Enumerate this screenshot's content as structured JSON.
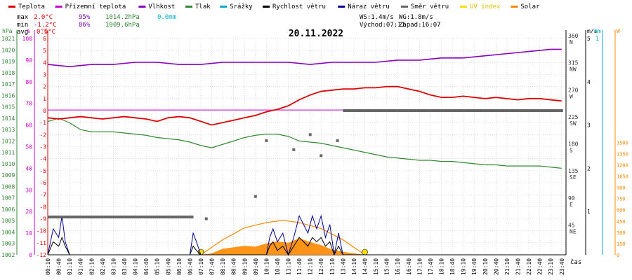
{
  "legend": [
    {
      "label": "Teplota",
      "color": "#dd0000"
    },
    {
      "label": "Přízemní teplota",
      "color": "#cc00cc"
    },
    {
      "label": "Vlhkost",
      "color": "#8800bb"
    },
    {
      "label": "Tlak",
      "color": "#338833"
    },
    {
      "label": "Srážky",
      "color": "#00aacc"
    },
    {
      "label": "Rychlost větru",
      "color": "#000000"
    },
    {
      "label": "Náraz větru",
      "color": "#000099"
    },
    {
      "label": "Směr větru",
      "color": "#666666"
    },
    {
      "label": "UV index",
      "color": "#ffdd00"
    },
    {
      "label": "Solar",
      "color": "#ff8800"
    }
  ],
  "stats": {
    "max_label": "max",
    "max_temp": "2.0°C",
    "max_hum": "95%",
    "max_press": "1014.2hPa",
    "rain": "0.0mm",
    "min_label": "min",
    "min_temp": "-1.2°C",
    "min_hum": "86%",
    "min_press": "1009.6hPa",
    "avg_label": "avg",
    "avg_temp": "0.5°C",
    "ws": "WS:1.4m/s",
    "wg": "WG:1.8m/s",
    "sunrise": "Východ:07:11",
    "sunset": "Západ:16:07"
  },
  "colors": {
    "temp": "#dd0000",
    "ground": "#cc00cc",
    "hum": "#8800bb",
    "press": "#338833",
    "rain": "#00aacc",
    "wind": "#000000",
    "gust": "#000099",
    "dir": "#666666",
    "uv": "#ffdd00",
    "solar": "#ff8800",
    "grid": "#c8c8c8"
  },
  "chart_data": {
    "type": "line",
    "title": "20.11.2022",
    "x_label": "čas",
    "x_ticks": [
      "00:10",
      "00:40",
      "01:10",
      "01:40",
      "02:10",
      "02:40",
      "03:10",
      "03:40",
      "04:10",
      "04:40",
      "05:10",
      "05:40",
      "06:10",
      "06:40",
      "07:10",
      "07:40",
      "08:10",
      "08:40",
      "09:10",
      "09:40",
      "10:10",
      "10:40",
      "11:10",
      "11:40",
      "12:10",
      "12:40",
      "13:10",
      "13:40",
      "14:10",
      "14:40",
      "15:10",
      "15:40",
      "16:10",
      "16:40",
      "17:10",
      "17:40",
      "18:10",
      "18:40",
      "19:10",
      "19:40",
      "20:10",
      "20:40",
      "21:10",
      "21:40",
      "22:10",
      "22:40",
      "23:10",
      "23:40"
    ],
    "axes": {
      "hPa": {
        "label": "hPa",
        "range": [
          1002,
          1021
        ],
        "ticks": [
          1002,
          1003,
          1004,
          1005,
          1006,
          1007,
          1008,
          1009,
          1010,
          1011,
          1012,
          1013,
          1014,
          1015,
          1016,
          1017,
          1018,
          1019,
          1020,
          1021
        ]
      },
      "percent": {
        "label": "%",
        "range": [
          0,
          100
        ],
        "ticks": [
          0,
          10,
          20,
          30,
          40,
          50,
          60,
          70,
          80,
          90,
          100
        ]
      },
      "celsius": {
        "label": "°C",
        "range": [
          -12,
          6
        ],
        "ticks": [
          -12,
          -11,
          -10,
          -9,
          -8,
          -7,
          -6,
          -5,
          -4,
          -3,
          -2,
          -1,
          0,
          1,
          2,
          3,
          4,
          5,
          6
        ]
      },
      "direction": {
        "range": [
          0,
          360
        ],
        "ticks": [
          {
            "v": 45,
            "t": "45",
            "c": "NE"
          },
          {
            "v": 90,
            "t": "90",
            "c": "E"
          },
          {
            "v": 135,
            "t": "135",
            "c": "SE"
          },
          {
            "v": 180,
            "t": "180",
            "c": "S"
          },
          {
            "v": 225,
            "t": "225",
            "c": "SW"
          },
          {
            "v": 270,
            "t": "270",
            "c": "W"
          },
          {
            "v": 315,
            "t": "315",
            "c": "NW"
          },
          {
            "v": 360,
            "t": "360",
            "c": "N"
          }
        ]
      },
      "ms": {
        "label": "m/s",
        "range": [
          0,
          5
        ],
        "ticks": [
          1,
          2,
          3,
          4,
          5
        ]
      },
      "mm": {
        "label": "mm",
        "range": [
          0,
          1
        ],
        "ticks": [
          1
        ]
      },
      "W": {
        "label": "W",
        "range": [
          0,
          1500
        ],
        "ticks": [
          0,
          150,
          300,
          450,
          600,
          750,
          900,
          1050,
          1200,
          1350,
          1500
        ]
      }
    },
    "series": [
      {
        "name": "Teplota",
        "axis": "celsius",
        "points": [
          [
            0,
            -0.6
          ],
          [
            1,
            -0.7
          ],
          [
            2,
            -0.6
          ],
          [
            3,
            -0.5
          ],
          [
            4,
            -0.6
          ],
          [
            5,
            -0.7
          ],
          [
            6,
            -0.6
          ],
          [
            7,
            -0.5
          ],
          [
            8,
            -0.6
          ],
          [
            9,
            -0.7
          ],
          [
            10,
            -0.9
          ],
          [
            11,
            -0.6
          ],
          [
            12,
            -0.5
          ],
          [
            13,
            -0.6
          ],
          [
            14,
            -0.9
          ],
          [
            15,
            -1.2
          ],
          [
            16,
            -1.0
          ],
          [
            17,
            -0.8
          ],
          [
            18,
            -0.6
          ],
          [
            19,
            -0.4
          ],
          [
            20,
            -0.1
          ],
          [
            21,
            0.1
          ],
          [
            22,
            0.4
          ],
          [
            23,
            0.9
          ],
          [
            24,
            1.3
          ],
          [
            25,
            1.6
          ],
          [
            26,
            1.7
          ],
          [
            27,
            1.8
          ],
          [
            28,
            1.8
          ],
          [
            29,
            1.9
          ],
          [
            30,
            1.9
          ],
          [
            31,
            2.0
          ],
          [
            32,
            2.0
          ],
          [
            33,
            1.8
          ],
          [
            34,
            1.6
          ],
          [
            35,
            1.3
          ],
          [
            36,
            1.1
          ],
          [
            37,
            1.1
          ],
          [
            38,
            1.2
          ],
          [
            39,
            1.1
          ],
          [
            40,
            1.0
          ],
          [
            41,
            1.1
          ],
          [
            42,
            1.0
          ],
          [
            43,
            0.9
          ],
          [
            44,
            1.0
          ],
          [
            45,
            1.0
          ],
          [
            46,
            0.9
          ],
          [
            47,
            0.8
          ]
        ]
      },
      {
        "name": "Přízemní teplota",
        "axis": "celsius",
        "points": [
          [
            0,
            0.05
          ],
          [
            47,
            0.05
          ]
        ]
      },
      {
        "name": "Vlhkost",
        "axis": "percent",
        "points": [
          [
            0,
            88
          ],
          [
            2,
            87
          ],
          [
            4,
            88
          ],
          [
            6,
            88
          ],
          [
            8,
            89
          ],
          [
            10,
            89
          ],
          [
            12,
            88
          ],
          [
            14,
            88
          ],
          [
            16,
            89
          ],
          [
            18,
            89
          ],
          [
            20,
            89
          ],
          [
            22,
            89
          ],
          [
            24,
            88
          ],
          [
            26,
            89
          ],
          [
            28,
            89
          ],
          [
            30,
            89
          ],
          [
            32,
            90
          ],
          [
            34,
            90
          ],
          [
            36,
            91
          ],
          [
            38,
            91
          ],
          [
            40,
            92
          ],
          [
            42,
            93
          ],
          [
            44,
            94
          ],
          [
            46,
            95
          ],
          [
            47,
            95
          ]
        ]
      },
      {
        "name": "Tlak",
        "axis": "hPa",
        "points": [
          [
            0,
            1013.7
          ],
          [
            1,
            1014.0
          ],
          [
            2,
            1013.6
          ],
          [
            3,
            1013.0
          ],
          [
            4,
            1012.8
          ],
          [
            5,
            1012.8
          ],
          [
            6,
            1012.8
          ],
          [
            7,
            1012.7
          ],
          [
            8,
            1012.6
          ],
          [
            9,
            1012.5
          ],
          [
            10,
            1012.3
          ],
          [
            11,
            1012.2
          ],
          [
            12,
            1012.1
          ],
          [
            13,
            1011.9
          ],
          [
            14,
            1011.6
          ],
          [
            15,
            1011.4
          ],
          [
            16,
            1011.7
          ],
          [
            17,
            1012.0
          ],
          [
            18,
            1012.3
          ],
          [
            19,
            1012.5
          ],
          [
            20,
            1012.6
          ],
          [
            21,
            1012.6
          ],
          [
            22,
            1012.4
          ],
          [
            23,
            1012.0
          ],
          [
            24,
            1011.9
          ],
          [
            25,
            1011.8
          ],
          [
            26,
            1011.6
          ],
          [
            27,
            1011.4
          ],
          [
            28,
            1011.2
          ],
          [
            29,
            1011.0
          ],
          [
            30,
            1010.8
          ],
          [
            31,
            1010.6
          ],
          [
            32,
            1010.5
          ],
          [
            33,
            1010.4
          ],
          [
            34,
            1010.3
          ],
          [
            35,
            1010.3
          ],
          [
            36,
            1010.2
          ],
          [
            37,
            1010.2
          ],
          [
            38,
            1010.1
          ],
          [
            39,
            1010.0
          ],
          [
            40,
            1009.9
          ],
          [
            41,
            1009.9
          ],
          [
            42,
            1009.8
          ],
          [
            43,
            1009.8
          ],
          [
            44,
            1009.8
          ],
          [
            45,
            1009.8
          ],
          [
            46,
            1009.7
          ],
          [
            47,
            1009.6
          ]
        ]
      },
      {
        "name": "Náraz větru",
        "axis": "ms",
        "points": [
          [
            0,
            0
          ],
          [
            0.5,
            0.6
          ],
          [
            1,
            0.4
          ],
          [
            1.3,
            0.9
          ],
          [
            1.6,
            0.3
          ],
          [
            2,
            0
          ],
          [
            13,
            0
          ],
          [
            13.3,
            0.5
          ],
          [
            13.6,
            0.3
          ],
          [
            14,
            0
          ],
          [
            20,
            0
          ],
          [
            20.3,
            0.4
          ],
          [
            20.6,
            0.6
          ],
          [
            21,
            0.3
          ],
          [
            21.5,
            0.5
          ],
          [
            22,
            0
          ],
          [
            22.5,
            0.4
          ],
          [
            23,
            0.9
          ],
          [
            23.4,
            0.7
          ],
          [
            23.8,
            0.5
          ],
          [
            24.2,
            0.9
          ],
          [
            24.6,
            0.6
          ],
          [
            25,
            0.9
          ],
          [
            25.4,
            0.4
          ],
          [
            25.8,
            0.7
          ],
          [
            26.2,
            0
          ],
          [
            26.6,
            0.5
          ],
          [
            27,
            0
          ],
          [
            47,
            0
          ]
        ]
      },
      {
        "name": "Rychlost větru",
        "axis": "ms",
        "points": [
          [
            0,
            0
          ],
          [
            0.5,
            0.3
          ],
          [
            1,
            0.2
          ],
          [
            1.3,
            0.4
          ],
          [
            1.6,
            0.2
          ],
          [
            2,
            0
          ],
          [
            13,
            0
          ],
          [
            13.3,
            0.2
          ],
          [
            13.6,
            0.1
          ],
          [
            14,
            0
          ],
          [
            20,
            0
          ],
          [
            20.3,
            0.2
          ],
          [
            20.6,
            0.3
          ],
          [
            21,
            0.1
          ],
          [
            21.5,
            0.2
          ],
          [
            22,
            0
          ],
          [
            22.5,
            0.2
          ],
          [
            23,
            0.4
          ],
          [
            23.4,
            0.3
          ],
          [
            23.8,
            0.2
          ],
          [
            24.2,
            0.4
          ],
          [
            24.6,
            0.3
          ],
          [
            25,
            0.4
          ],
          [
            25.4,
            0.2
          ],
          [
            25.8,
            0.3
          ],
          [
            26.2,
            0
          ],
          [
            26.6,
            0.2
          ],
          [
            27,
            0
          ],
          [
            47,
            0
          ]
        ]
      },
      {
        "name": "Směr větru",
        "axis": "direction",
        "points": [
          [
            0,
            63
          ],
          [
            13.2,
            63
          ],
          [
            14.5,
            60
          ],
          [
            19,
            97
          ],
          [
            20,
            190
          ],
          [
            22.5,
            175
          ],
          [
            24,
            200
          ],
          [
            25,
            165
          ],
          [
            26.5,
            190
          ],
          [
            27,
            240
          ],
          [
            47,
            240
          ]
        ]
      },
      {
        "name": "Solar",
        "axis": "W",
        "points": [
          [
            14,
            0
          ],
          [
            15,
            20
          ],
          [
            16,
            80
          ],
          [
            17,
            100
          ],
          [
            18,
            120
          ],
          [
            19,
            110
          ],
          [
            20,
            150
          ],
          [
            21,
            180
          ],
          [
            22,
            160
          ],
          [
            23,
            220
          ],
          [
            24,
            170
          ],
          [
            25,
            130
          ],
          [
            26,
            70
          ],
          [
            27,
            40
          ],
          [
            28,
            20
          ],
          [
            29,
            0
          ]
        ]
      },
      {
        "name": "UV index",
        "axis": "W",
        "points": [
          [
            14,
            0
          ],
          [
            16,
            200
          ],
          [
            18,
            360
          ],
          [
            20,
            430
          ],
          [
            21.5,
            460
          ],
          [
            23,
            430
          ],
          [
            25,
            350
          ],
          [
            27,
            200
          ],
          [
            29,
            0
          ]
        ]
      }
    ]
  }
}
